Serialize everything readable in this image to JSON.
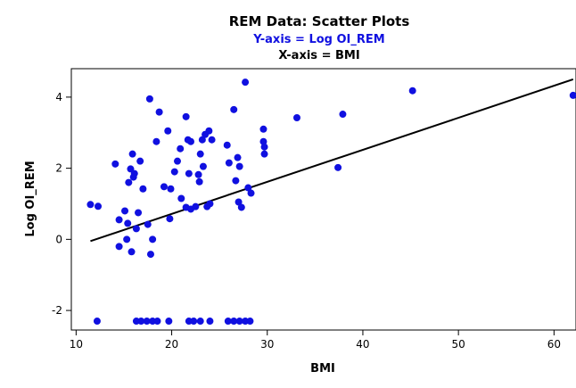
{
  "chart_data": {
    "type": "scatter",
    "title": "REM Data: Scatter Plots",
    "subtitle": "Y-axis = Log OI_REM",
    "subtitle2": "X-axis = BMI",
    "xlabel": "BMI",
    "ylabel": "Log OI_REM",
    "xlim": [
      9.5,
      62.3
    ],
    "ylim": [
      -2.55,
      4.8
    ],
    "xticks": [
      10,
      20,
      30,
      40,
      50,
      60
    ],
    "yticks": [
      -2,
      0,
      2,
      4
    ],
    "grid": false,
    "colors": {
      "points": "#1010e0",
      "fit_line": "#000000",
      "title": "#000000",
      "subtitle": "#1010e0",
      "subtitle2": "#000000",
      "frame": "#000000"
    },
    "series": [
      {
        "points": [
          [
            11.5,
            0.98
          ],
          [
            12.3,
            0.93
          ],
          [
            14.1,
            2.12
          ],
          [
            14.5,
            0.55
          ],
          [
            14.5,
            -0.2
          ],
          [
            15.1,
            0.8
          ],
          [
            15.3,
            0.0
          ],
          [
            15.4,
            0.45
          ],
          [
            15.5,
            1.6
          ],
          [
            15.7,
            1.98
          ],
          [
            15.8,
            -0.35
          ],
          [
            15.9,
            2.4
          ],
          [
            16.0,
            1.75
          ],
          [
            16.1,
            1.85
          ],
          [
            16.3,
            0.3
          ],
          [
            16.5,
            0.75
          ],
          [
            16.7,
            2.2
          ],
          [
            17.0,
            1.42
          ],
          [
            17.5,
            0.42
          ],
          [
            17.7,
            3.95
          ],
          [
            17.8,
            -0.42
          ],
          [
            18.0,
            0.0
          ],
          [
            18.4,
            2.75
          ],
          [
            18.7,
            3.58
          ],
          [
            19.2,
            1.48
          ],
          [
            19.6,
            3.05
          ],
          [
            19.8,
            0.58
          ],
          [
            19.9,
            1.42
          ],
          [
            20.3,
            1.9
          ],
          [
            20.6,
            2.2
          ],
          [
            20.9,
            2.55
          ],
          [
            21.0,
            1.15
          ],
          [
            21.5,
            0.9
          ],
          [
            21.5,
            3.45
          ],
          [
            21.7,
            2.8
          ],
          [
            21.8,
            1.85
          ],
          [
            22.0,
            2.75
          ],
          [
            22.0,
            0.85
          ],
          [
            22.5,
            0.92
          ],
          [
            22.8,
            1.82
          ],
          [
            22.9,
            1.62
          ],
          [
            23.0,
            2.4
          ],
          [
            23.2,
            2.8
          ],
          [
            23.3,
            2.05
          ],
          [
            23.5,
            2.95
          ],
          [
            23.7,
            0.92
          ],
          [
            23.9,
            3.05
          ],
          [
            24.0,
            1.0
          ],
          [
            24.2,
            2.8
          ],
          [
            25.8,
            2.65
          ],
          [
            26.0,
            2.15
          ],
          [
            26.5,
            3.65
          ],
          [
            26.7,
            1.65
          ],
          [
            26.9,
            2.3
          ],
          [
            27.0,
            1.05
          ],
          [
            27.1,
            2.05
          ],
          [
            27.3,
            0.9
          ],
          [
            27.7,
            4.42
          ],
          [
            28.0,
            1.45
          ],
          [
            28.3,
            1.3
          ],
          [
            29.6,
            2.75
          ],
          [
            29.6,
            3.1
          ],
          [
            29.7,
            2.6
          ],
          [
            29.7,
            2.4
          ],
          [
            33.1,
            3.42
          ],
          [
            37.4,
            2.02
          ],
          [
            37.9,
            3.52
          ],
          [
            45.2,
            4.18
          ],
          [
            62.0,
            4.05
          ],
          [
            12.2,
            -2.3
          ],
          [
            16.3,
            -2.3
          ],
          [
            16.8,
            -2.3
          ],
          [
            17.4,
            -2.3
          ],
          [
            18.0,
            -2.3
          ],
          [
            18.5,
            -2.3
          ],
          [
            19.7,
            -2.3
          ],
          [
            21.8,
            -2.3
          ],
          [
            22.3,
            -2.3
          ],
          [
            23.0,
            -2.3
          ],
          [
            24.0,
            -2.3
          ],
          [
            25.9,
            -2.3
          ],
          [
            26.5,
            -2.3
          ],
          [
            27.1,
            -2.3
          ],
          [
            27.7,
            -2.3
          ],
          [
            28.2,
            -2.3
          ]
        ]
      }
    ],
    "fit_line": {
      "x": [
        11.5,
        62.0
      ],
      "y": [
        -0.05,
        4.5
      ]
    }
  }
}
